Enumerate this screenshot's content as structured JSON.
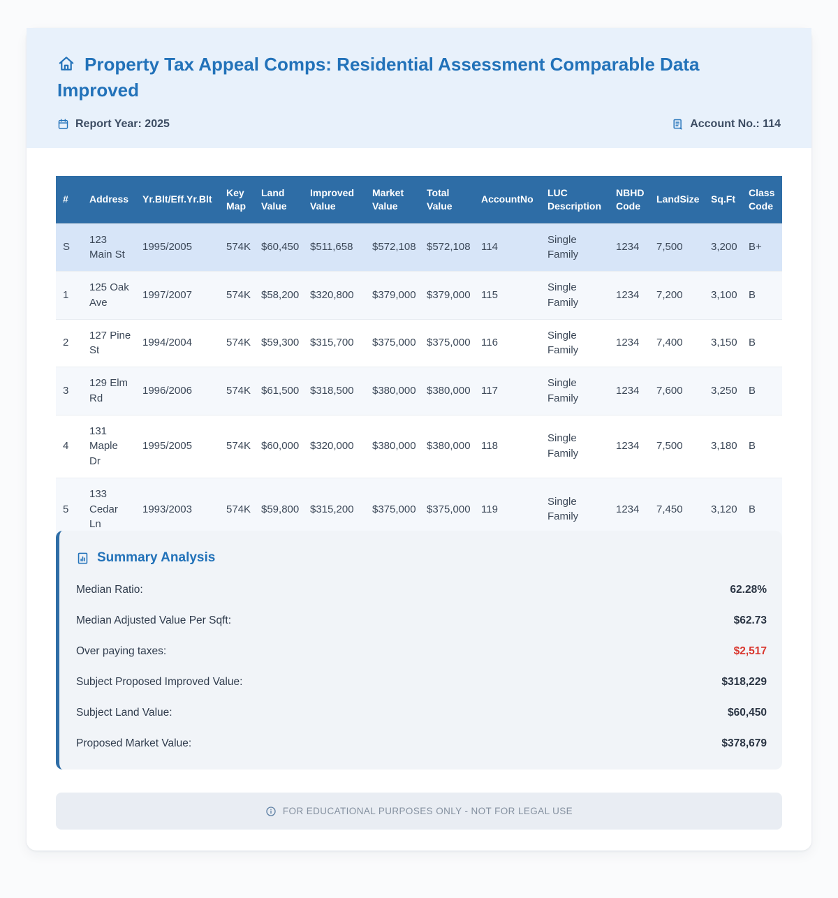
{
  "header": {
    "title": "Property Tax Appeal Comps: Residential Assessment Comparable Data Improved",
    "report_year": "Report Year: 2025",
    "account_no": "Account No.: 114"
  },
  "table": {
    "columns": [
      {
        "key": "num",
        "label": "#"
      },
      {
        "key": "address",
        "label": "Address"
      },
      {
        "key": "yr_blt",
        "label": "Yr.Blt/Eff.Yr.Blt"
      },
      {
        "key": "key_map",
        "label": "Key Map"
      },
      {
        "key": "land_value",
        "label": "Land Value"
      },
      {
        "key": "improved_value",
        "label": "Improved Value"
      },
      {
        "key": "market_value",
        "label": "Market Value"
      },
      {
        "key": "total_value",
        "label": "Total Value"
      },
      {
        "key": "account_no",
        "label": "AccountNo"
      },
      {
        "key": "luc_description",
        "label": "LUC Description"
      },
      {
        "key": "nbhd_code",
        "label": "NBHD Code"
      },
      {
        "key": "land_size",
        "label": "LandSize"
      },
      {
        "key": "sqft",
        "label": "Sq.Ft"
      },
      {
        "key": "class_code",
        "label": "Class Code"
      }
    ],
    "rows": [
      {
        "num": "S",
        "address": "123 Main St",
        "yr_blt": "1995/2005",
        "key_map": "574K",
        "land_value": "$60,450",
        "improved_value": "$511,658",
        "market_value": "$572,108",
        "total_value": "$572,108",
        "account_no": "114",
        "luc_description": "Single Family",
        "nbhd_code": "1234",
        "land_size": "7,500",
        "sqft": "3,200",
        "class_code": "B+",
        "is_subject": true
      },
      {
        "num": "1",
        "address": "125 Oak Ave",
        "yr_blt": "1997/2007",
        "key_map": "574K",
        "land_value": "$58,200",
        "improved_value": "$320,800",
        "market_value": "$379,000",
        "total_value": "$379,000",
        "account_no": "115",
        "luc_description": "Single Family",
        "nbhd_code": "1234",
        "land_size": "7,200",
        "sqft": "3,100",
        "class_code": "B",
        "is_subject": false
      },
      {
        "num": "2",
        "address": "127 Pine St",
        "yr_blt": "1994/2004",
        "key_map": "574K",
        "land_value": "$59,300",
        "improved_value": "$315,700",
        "market_value": "$375,000",
        "total_value": "$375,000",
        "account_no": "116",
        "luc_description": "Single Family",
        "nbhd_code": "1234",
        "land_size": "7,400",
        "sqft": "3,150",
        "class_code": "B",
        "is_subject": false
      },
      {
        "num": "3",
        "address": "129 Elm Rd",
        "yr_blt": "1996/2006",
        "key_map": "574K",
        "land_value": "$61,500",
        "improved_value": "$318,500",
        "market_value": "$380,000",
        "total_value": "$380,000",
        "account_no": "117",
        "luc_description": "Single Family",
        "nbhd_code": "1234",
        "land_size": "7,600",
        "sqft": "3,250",
        "class_code": "B",
        "is_subject": false
      },
      {
        "num": "4",
        "address": "131 Maple Dr",
        "yr_blt": "1995/2005",
        "key_map": "574K",
        "land_value": "$60,000",
        "improved_value": "$320,000",
        "market_value": "$380,000",
        "total_value": "$380,000",
        "account_no": "118",
        "luc_description": "Single Family",
        "nbhd_code": "1234",
        "land_size": "7,500",
        "sqft": "3,180",
        "class_code": "B",
        "is_subject": false
      },
      {
        "num": "5",
        "address": "133 Cedar Ln",
        "yr_blt": "1993/2003",
        "key_map": "574K",
        "land_value": "$59,800",
        "improved_value": "$315,200",
        "market_value": "$375,000",
        "total_value": "$375,000",
        "account_no": "119",
        "luc_description": "Single Family",
        "nbhd_code": "1234",
        "land_size": "7,450",
        "sqft": "3,120",
        "class_code": "B",
        "is_subject": false
      }
    ]
  },
  "summary": {
    "title": "Summary Analysis",
    "items": [
      {
        "label": "Median Ratio:",
        "value": "62.28%",
        "highlight": false
      },
      {
        "label": "Median Adjusted Value Per Sqft:",
        "value": "$62.73",
        "highlight": false
      },
      {
        "label": "Over paying taxes:",
        "value": "$2,517",
        "highlight": true
      },
      {
        "label": "Subject Proposed Improved Value:",
        "value": "$318,229",
        "highlight": false
      },
      {
        "label": "Subject Land Value:",
        "value": "$60,450",
        "highlight": false
      },
      {
        "label": "Proposed Market Value:",
        "value": "$378,679",
        "highlight": false
      }
    ]
  },
  "footer": {
    "disclaimer": "FOR EDUCATIONAL PURPOSES ONLY - NOT FOR LEGAL USE"
  },
  "colors": {
    "accent_blue": "#2272b9",
    "table_header_bg": "#2e6da6",
    "subject_row_bg": "#d7e5f8",
    "alert_red": "#d9372f"
  }
}
